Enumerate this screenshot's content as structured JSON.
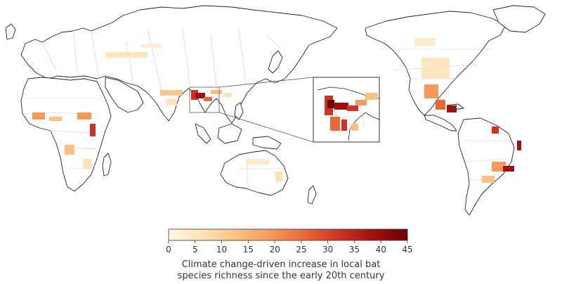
{
  "legend": {
    "ticks": [
      "0",
      "5",
      "10",
      "15",
      "20",
      "25",
      "30",
      "35",
      "40",
      "45"
    ],
    "min": 0,
    "max": 45,
    "colors": [
      "#fff7e6",
      "#fde3b5",
      "#fbc184",
      "#f59a5c",
      "#e8683c",
      "#cc3322",
      "#a0110f",
      "#6f0000"
    ],
    "caption_line1": "Climate change-driven increase in local bat",
    "caption_line2": "species richness since the early 20th century"
  },
  "map": {
    "land_color": "#ffffff",
    "coast_color": "#222222",
    "border_color": "#c9c9c9",
    "inset_region": "Southeast Asia (Indochina)"
  }
}
